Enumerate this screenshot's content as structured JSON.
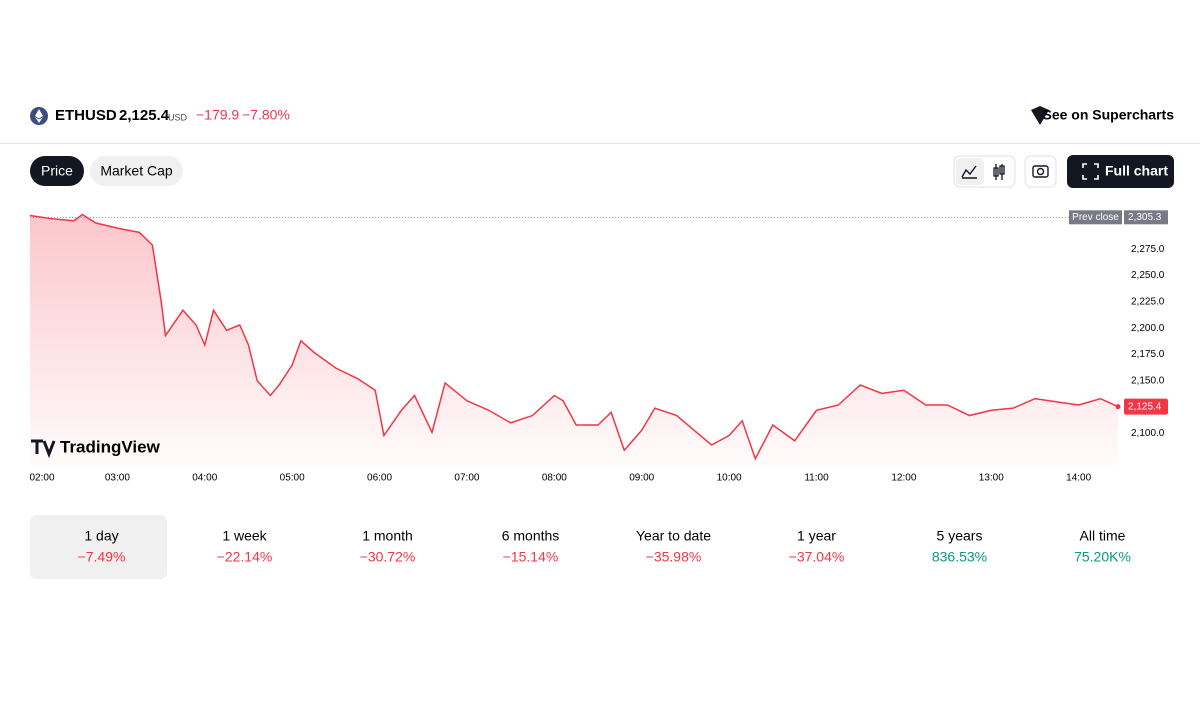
{
  "header": {
    "symbol": "ETHUSD",
    "price": "2,125.4",
    "currency": "USD",
    "change": "−179.9",
    "change_pct": "−7.80%",
    "link": "See on Supercharts"
  },
  "tabs": [
    "Price",
    "Market Cap"
  ],
  "full_chart": "Full chart",
  "watermark": "TradingView",
  "periods": [
    {
      "label": "1 day",
      "change": "−7.49%"
    },
    {
      "label": "1 week",
      "change": "−22.14%"
    },
    {
      "label": "1 month",
      "change": "−30.72%"
    },
    {
      "label": "6 months",
      "change": "−15.14%"
    },
    {
      "label": "Year to date",
      "change": "−35.98%"
    },
    {
      "label": "1 year",
      "change": "−37.04%"
    },
    {
      "label": "5 years",
      "change": "836.53%"
    },
    {
      "label": "All time",
      "change": "75.20K%"
    }
  ],
  "chart_data": {
    "type": "area",
    "color": "#f23645",
    "x": [
      2.0,
      2.25,
      2.5,
      2.6,
      2.75,
      3.0,
      3.25,
      3.4,
      3.5,
      3.55,
      3.75,
      3.9,
      4.0,
      4.1,
      4.25,
      4.4,
      4.5,
      4.6,
      4.75,
      4.85,
      5.0,
      5.1,
      5.25,
      5.5,
      5.75,
      5.95,
      6.05,
      6.25,
      6.4,
      6.6,
      6.75,
      7.0,
      7.25,
      7.5,
      7.75,
      8.0,
      8.1,
      8.25,
      8.5,
      8.65,
      8.8,
      9.0,
      9.15,
      9.4,
      9.6,
      9.8,
      10.0,
      10.15,
      10.3,
      10.5,
      10.75,
      11.0,
      11.25,
      11.5,
      11.75,
      12.0,
      12.25,
      12.5,
      12.75,
      13.0,
      13.25,
      13.5,
      13.75,
      14.0,
      14.25,
      14.45
    ],
    "values": [
      2307,
      2304,
      2302,
      2308,
      2300,
      2295,
      2291,
      2279,
      2226,
      2193,
      2217,
      2203,
      2184,
      2217,
      2198,
      2203,
      2184,
      2150,
      2136,
      2146,
      2165,
      2188,
      2177,
      2162,
      2152,
      2141,
      2098,
      2122,
      2136,
      2101,
      2148,
      2131,
      2122,
      2110,
      2117,
      2136,
      2131,
      2108,
      2108,
      2120,
      2084,
      2103,
      2124,
      2117,
      2103,
      2089,
      2098,
      2112,
      2076,
      2108,
      2093,
      2122,
      2127,
      2146,
      2138,
      2141,
      2127,
      2127,
      2117,
      2122,
      2124,
      2133,
      2130,
      2127,
      2133,
      2125.4
    ],
    "xlim": [
      2.0,
      14.45
    ],
    "ylim": [
      2070,
      2317
    ],
    "xticks": [
      {
        "value": 2,
        "label": "02:00"
      },
      {
        "value": 3,
        "label": "03:00"
      },
      {
        "value": 4,
        "label": "04:00"
      },
      {
        "value": 5,
        "label": "05:00"
      },
      {
        "value": 6,
        "label": "06:00"
      },
      {
        "value": 7,
        "label": "07:00"
      },
      {
        "value": 8,
        "label": "08:00"
      },
      {
        "value": 9,
        "label": "09:00"
      },
      {
        "value": 10,
        "label": "10:00"
      },
      {
        "value": 11,
        "label": "11:00"
      },
      {
        "value": 12,
        "label": "12:00"
      },
      {
        "value": 13,
        "label": "13:00"
      },
      {
        "value": 14,
        "label": "14:00"
      }
    ],
    "yticks": [
      {
        "value": 2100,
        "label": "2,100.0"
      },
      {
        "value": 2150,
        "label": "2,150.0"
      },
      {
        "value": 2175,
        "label": "2,175.0"
      },
      {
        "value": 2200,
        "label": "2,200.0"
      },
      {
        "value": 2225,
        "label": "2,225.0"
      },
      {
        "value": 2250,
        "label": "2,250.0"
      },
      {
        "value": 2275,
        "label": "2,275.0"
      }
    ],
    "prev_close": {
      "label": "Prev close",
      "value": 2305.3,
      "value_label": "2,305.3"
    }
  }
}
